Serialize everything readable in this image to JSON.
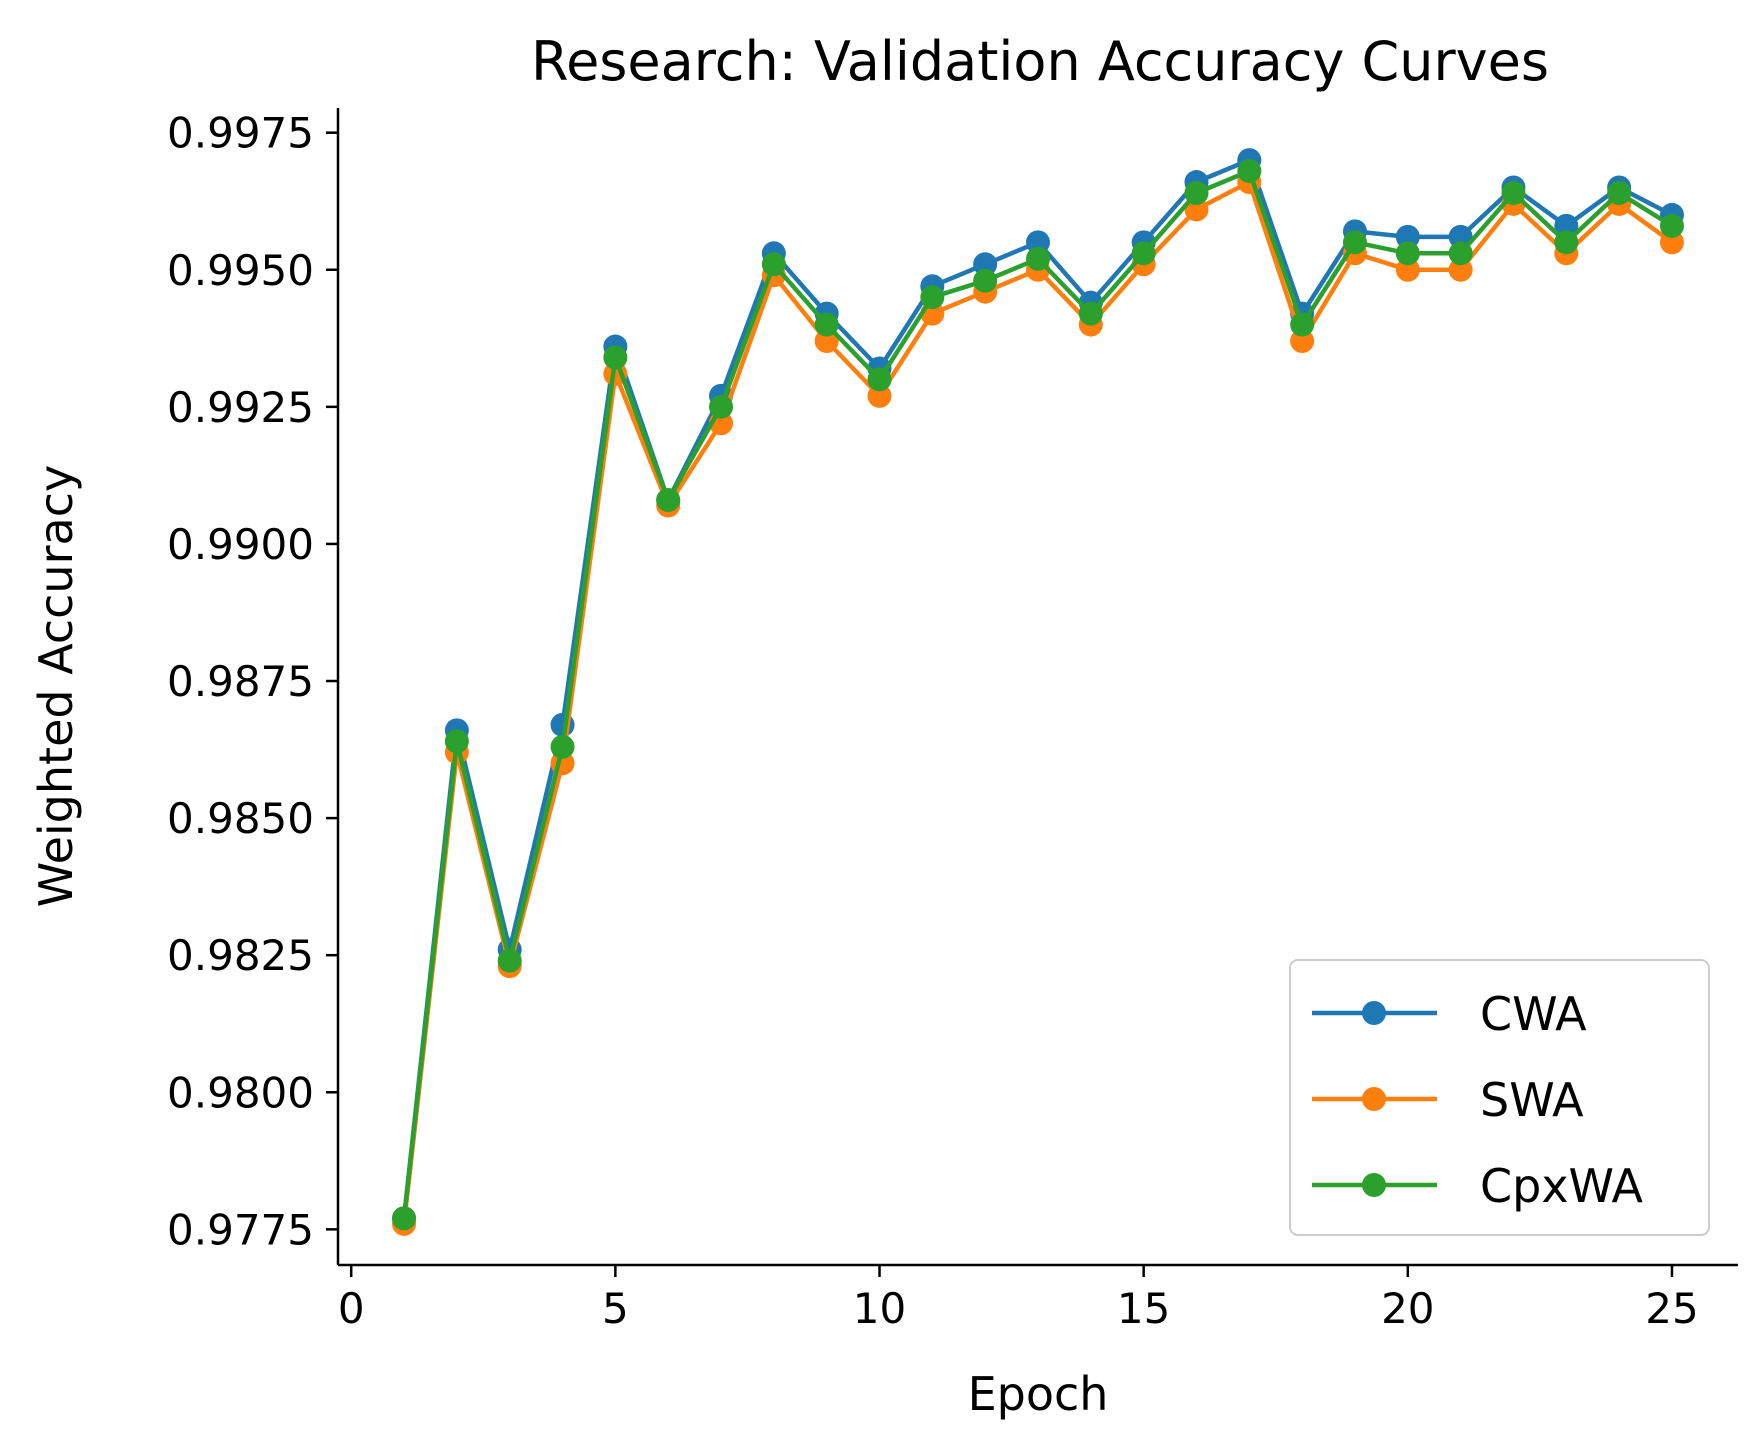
{
  "chart_data": {
    "type": "line",
    "title": "Research: Validation Accuracy Curves",
    "xlabel": "Epoch",
    "ylabel": "Weighted Accuracy",
    "xlim": [
      -0.25,
      26.25
    ],
    "ylim": [
      0.97685,
      0.99795
    ],
    "xticks": [
      0,
      5,
      10,
      15,
      20,
      25
    ],
    "yticks": [
      0.9775,
      0.98,
      0.9825,
      0.985,
      0.9875,
      0.99,
      0.9925,
      0.995,
      0.9975
    ],
    "ytick_labels": [
      "0.9775",
      "0.9800",
      "0.9825",
      "0.9850",
      "0.9875",
      "0.9900",
      "0.9925",
      "0.9950",
      "0.9975"
    ],
    "grid": false,
    "legend_position": "lower-right",
    "x": [
      1,
      2,
      3,
      4,
      5,
      6,
      7,
      8,
      9,
      10,
      11,
      12,
      13,
      14,
      15,
      16,
      17,
      18,
      19,
      20,
      21,
      22,
      23,
      24,
      25
    ],
    "series": [
      {
        "name": "CWA",
        "color": "#1f77b4",
        "values": [
          0.9777,
          0.9866,
          0.9826,
          0.9867,
          0.9936,
          0.9908,
          0.9927,
          0.9953,
          0.9942,
          0.9932,
          0.9947,
          0.9951,
          0.9955,
          0.9944,
          0.9955,
          0.9966,
          0.997,
          0.9942,
          0.9957,
          0.9956,
          0.9956,
          0.9965,
          0.9958,
          0.9965,
          0.996
        ]
      },
      {
        "name": "SWA",
        "color": "#ff7f0e",
        "values": [
          0.9776,
          0.9862,
          0.9823,
          0.986,
          0.9931,
          0.9907,
          0.9922,
          0.9949,
          0.9937,
          0.9927,
          0.9942,
          0.9946,
          0.995,
          0.994,
          0.9951,
          0.9961,
          0.9966,
          0.9937,
          0.9953,
          0.995,
          0.995,
          0.9962,
          0.9953,
          0.9962,
          0.9955
        ]
      },
      {
        "name": "CpxWA",
        "color": "#2ca02c",
        "values": [
          0.9777,
          0.9864,
          0.9824,
          0.9863,
          0.9934,
          0.9908,
          0.9925,
          0.9951,
          0.994,
          0.993,
          0.9945,
          0.9948,
          0.9952,
          0.9942,
          0.9953,
          0.9964,
          0.9968,
          0.994,
          0.9955,
          0.9953,
          0.9953,
          0.9964,
          0.9955,
          0.9964,
          0.9958
        ]
      }
    ]
  }
}
